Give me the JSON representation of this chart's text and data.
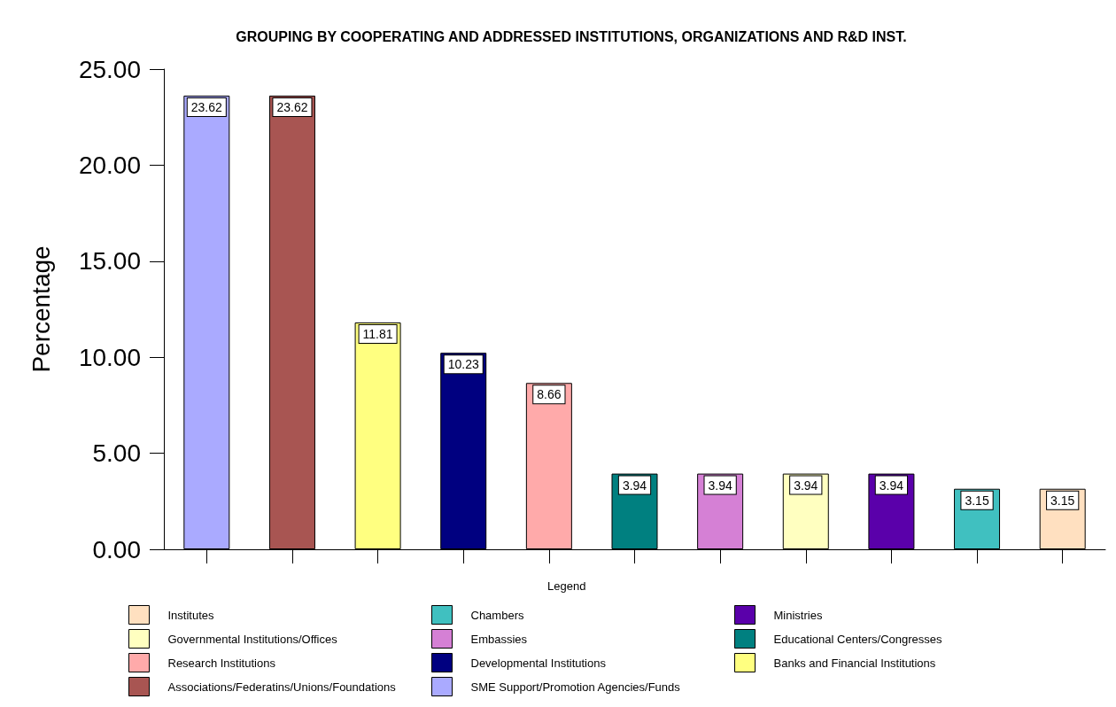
{
  "chart_data": {
    "type": "bar",
    "title": "GROUPING BY COOPERATING AND ADDRESSED INSTITUTIONS, ORGANIZATIONS AND R&D INST.",
    "ylabel": "Percentage",
    "legend_title": "Legend",
    "categories": [
      null,
      null,
      null,
      null,
      null,
      null,
      null,
      null,
      null,
      null,
      null
    ],
    "series": [
      {
        "name": "Institutes",
        "color": "#ffe0c0",
        "values": [
          null,
          null,
          null,
          null,
          null,
          null,
          null,
          null,
          null,
          null,
          3.15
        ]
      },
      {
        "name": "Chambers",
        "color": "#40c0c0",
        "values": [
          null,
          null,
          null,
          null,
          null,
          null,
          null,
          null,
          null,
          3.15,
          null
        ]
      },
      {
        "name": "Ministries",
        "color": "#5a00aa",
        "values": [
          null,
          null,
          null,
          null,
          null,
          null,
          null,
          null,
          3.94,
          null,
          null
        ]
      },
      {
        "name": "Governmental Institutions/Offices",
        "color": "#ffffc0",
        "values": [
          null,
          null,
          null,
          null,
          null,
          null,
          null,
          3.94,
          null,
          null,
          null
        ]
      },
      {
        "name": "Embassies",
        "color": "#d580d5",
        "values": [
          null,
          null,
          null,
          null,
          null,
          null,
          3.94,
          null,
          null,
          null,
          null
        ]
      },
      {
        "name": "Educational Centers/Congresses",
        "color": "#008080",
        "values": [
          null,
          null,
          null,
          null,
          null,
          3.94,
          null,
          null,
          null,
          null,
          null
        ]
      },
      {
        "name": "Research Institutions",
        "color": "#ffaaaa",
        "values": [
          null,
          null,
          null,
          null,
          8.66,
          null,
          null,
          null,
          null,
          null,
          null
        ]
      },
      {
        "name": "Developmental Institutions",
        "color": "#000080",
        "values": [
          null,
          null,
          null,
          10.23,
          null,
          null,
          null,
          null,
          null,
          null,
          null
        ]
      },
      {
        "name": "Banks and Financial Institutions",
        "color": "#ffff80",
        "values": [
          null,
          null,
          11.81,
          null,
          null,
          null,
          null,
          null,
          null,
          null,
          null
        ]
      },
      {
        "name": "Associations/Federatins/Unions/Foundations",
        "color": "#a85552",
        "values": [
          null,
          23.62,
          null,
          null,
          null,
          null,
          null,
          null,
          null,
          null,
          null
        ]
      },
      {
        "name": "SME Support/Promotion Agencies/Funds",
        "color": "#aaaaff",
        "values": [
          23.62,
          null,
          null,
          null,
          null,
          null,
          null,
          null,
          null,
          null,
          null
        ]
      }
    ],
    "ylim": [
      0,
      25
    ],
    "yticks": [
      {
        "value": 0,
        "label": "0.00"
      },
      {
        "value": 5,
        "label": "5.00"
      },
      {
        "value": 10,
        "label": "10.00"
      },
      {
        "value": 15,
        "label": "15.00"
      },
      {
        "value": 20,
        "label": "20.00"
      },
      {
        "value": 25,
        "label": "25.00"
      }
    ],
    "tick_labels": "y",
    "grid": false,
    "legend": "bottom",
    "data_labels": true
  }
}
